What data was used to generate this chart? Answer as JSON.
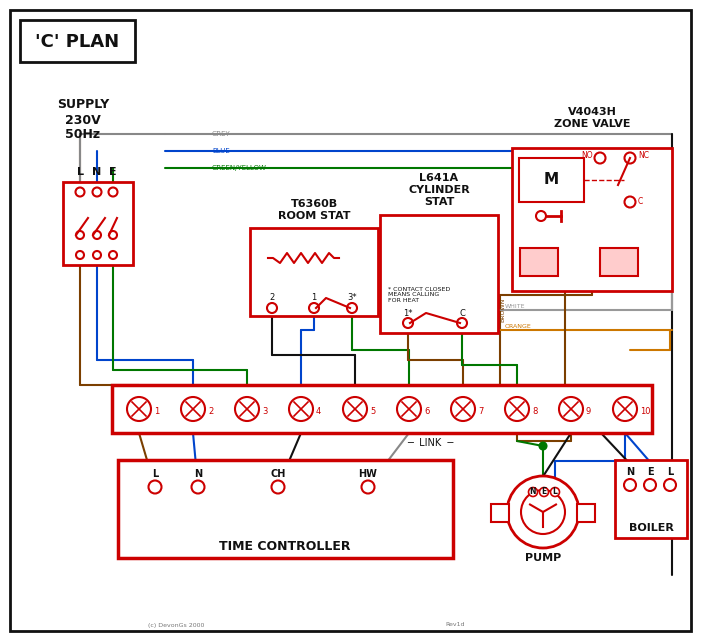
{
  "red": "#cc0000",
  "blue": "#0044cc",
  "green": "#007700",
  "grey": "#888888",
  "brown": "#7B3F00",
  "black": "#111111",
  "orange": "#cc7700",
  "white_wire": "#999999",
  "lw": 1.5,
  "title": "'C' PLAN",
  "supply_lines": "SUPPLY\n230V\n50Hz",
  "zone_valve_lines": "V4043H\nZONE VALVE",
  "room_stat_lines": "T6360B\nROOM STAT",
  "cyl_stat_lines": "L641A\nCYLINDER\nSTAT",
  "tc_label": "TIME CONTROLLER",
  "pump_label": "PUMP",
  "boiler_label": "BOILER",
  "contact_note": "* CONTACT CLOSED\nMEANS CALLING\nFOR HEAT",
  "link_label": "LINK",
  "copyright": "(c) DevonGs 2000",
  "rev": "Rev1d"
}
